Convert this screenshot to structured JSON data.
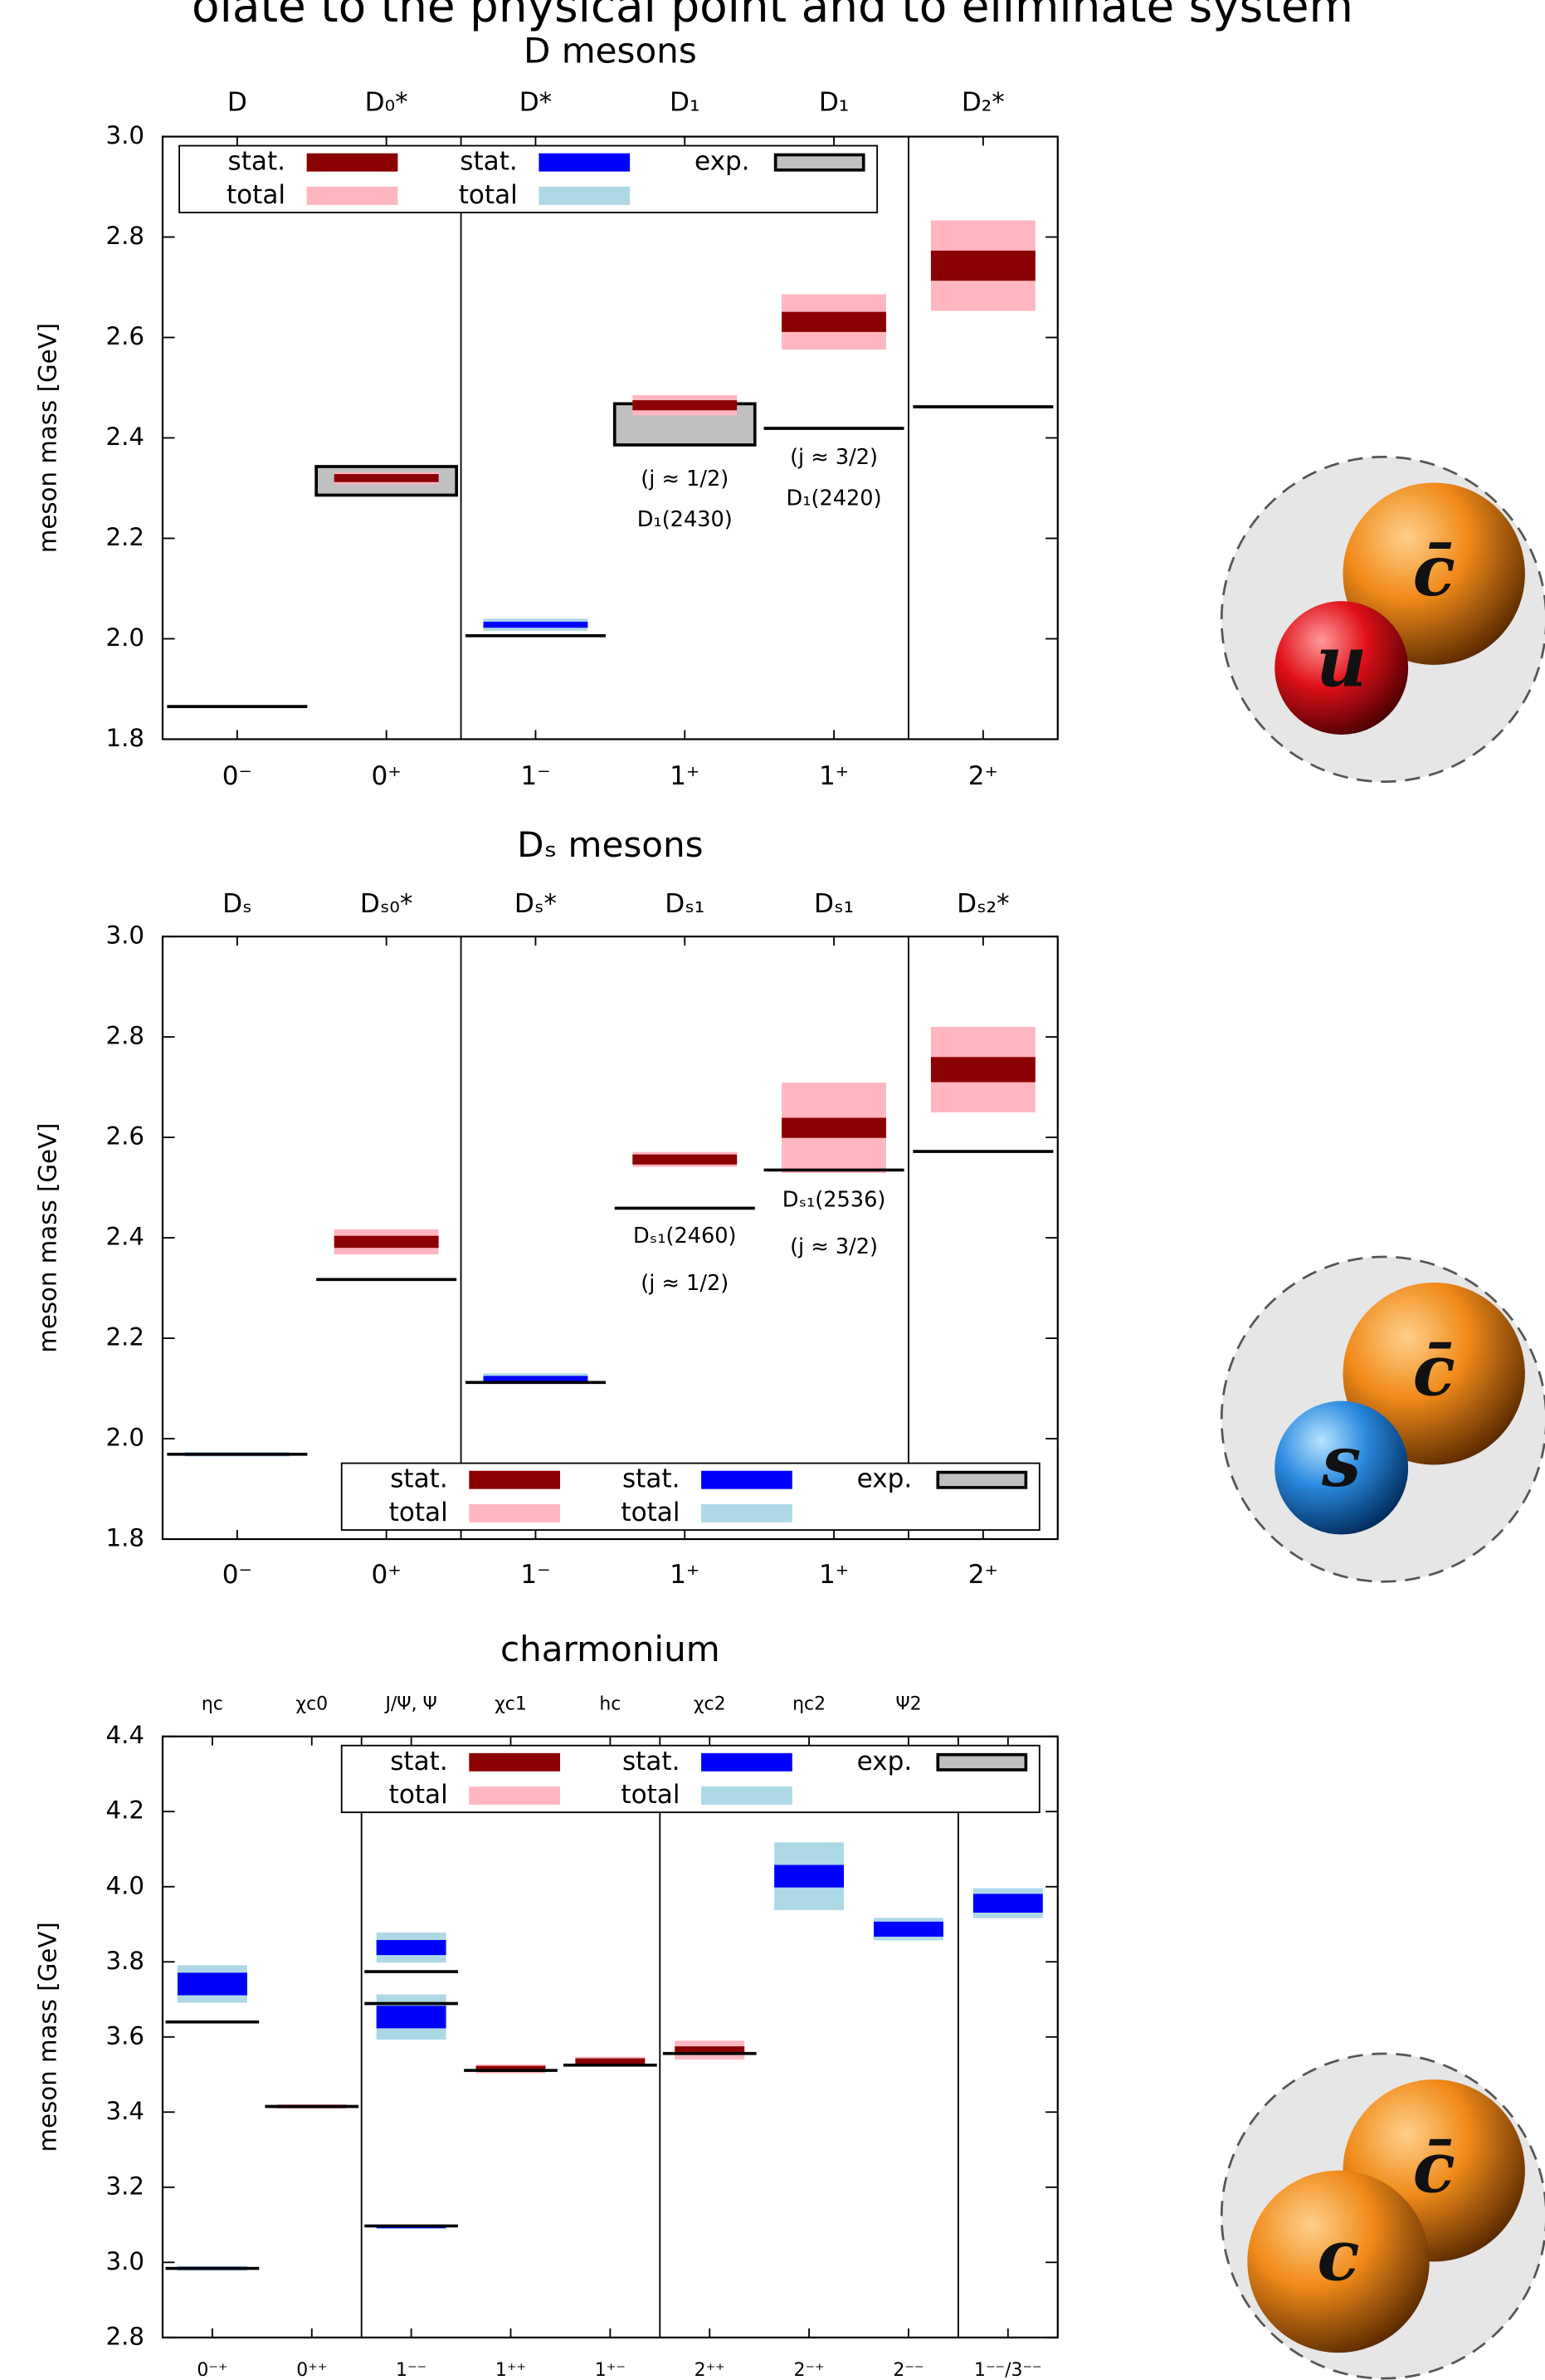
{
  "page_header": "olate to the physical point and to eliminate system",
  "chart_data": [
    {
      "type": "spectrum",
      "title": "D mesons",
      "ylabel": "meson mass [GeV]",
      "ylim": [
        1.8,
        3.0
      ],
      "yticks": [
        {
          "value": 1.8,
          "label": "1.8"
        },
        {
          "value": 2.0,
          "label": "2.0"
        },
        {
          "value": 2.2,
          "label": "2.2"
        },
        {
          "value": 2.4,
          "label": "2.4"
        },
        {
          "value": 2.6,
          "label": "2.6"
        },
        {
          "value": 2.8,
          "label": "2.8"
        },
        {
          "value": 3.0,
          "label": "3.0"
        }
      ],
      "categories": [
        "D",
        "D₀*",
        "D*",
        "D₁",
        "D₁",
        "D₂*"
      ],
      "x_labels": [
        "0⁻",
        "0⁺",
        "1⁻",
        "1⁺",
        "1⁺",
        "2⁺"
      ],
      "legend": "upper left",
      "series": [
        {
          "name": "stat.",
          "color": "#8b0000"
        },
        {
          "name": "total",
          "color": "#ffb6c1"
        },
        {
          "name": "stat.",
          "color": "#0000ff"
        },
        {
          "name": "total",
          "color": "#add8e6"
        },
        {
          "name": "exp.",
          "color": "#c0c0c0"
        }
      ],
      "levels": [
        {
          "x": 1,
          "series": 0,
          "value": 2.32,
          "stat": 0.008,
          "total": 0.012
        },
        {
          "x": 2,
          "series": 2,
          "value": 2.028,
          "stat": 0.006,
          "total": 0.012
        },
        {
          "x": 3,
          "series": 0,
          "value": 2.465,
          "stat": 0.01,
          "total": 0.02
        },
        {
          "x": 4,
          "series": 0,
          "value": 2.631,
          "stat": 0.02,
          "total": 0.055
        },
        {
          "x": 5,
          "series": 0,
          "value": 2.743,
          "stat": 0.03,
          "total": 0.09
        }
      ],
      "experiment": [
        {
          "x": 0,
          "value": 1.865
        },
        {
          "x": 2,
          "value": 2.006
        },
        {
          "x": 4,
          "value": 2.419
        },
        {
          "x": 5,
          "value": 2.462
        }
      ],
      "experiment_ranges": [
        {
          "x": 1,
          "low": 2.286,
          "high": 2.343
        },
        {
          "x": 3,
          "low": 2.386,
          "high": 2.468
        }
      ],
      "annotations": [
        {
          "x": 3,
          "lines": [
            "(j ≈ 1/2)",
            "D₁(2430)"
          ]
        },
        {
          "x": 4,
          "lines": [
            "(j ≈ 3/2)",
            "D₁(2420)"
          ]
        }
      ]
    },
    {
      "type": "spectrum",
      "title": "Dₛ mesons",
      "ylabel": "meson mass [GeV]",
      "ylim": [
        1.8,
        3.0
      ],
      "yticks": [
        {
          "value": 1.8,
          "label": "1.8"
        },
        {
          "value": 2.0,
          "label": "2.0"
        },
        {
          "value": 2.2,
          "label": "2.2"
        },
        {
          "value": 2.4,
          "label": "2.4"
        },
        {
          "value": 2.6,
          "label": "2.6"
        },
        {
          "value": 2.8,
          "label": "2.8"
        },
        {
          "value": 3.0,
          "label": "3.0"
        }
      ],
      "categories": [
        "Dₛ",
        "Dₛ₀*",
        "Dₛ*",
        "Dₛ₁",
        "Dₛ₁",
        "Dₛ₂*"
      ],
      "x_labels": [
        "0⁻",
        "0⁺",
        "1⁻",
        "1⁺",
        "1⁺",
        "2⁺"
      ],
      "legend": "lower right",
      "series": [
        {
          "name": "stat.",
          "color": "#8b0000"
        },
        {
          "name": "total",
          "color": "#ffb6c1"
        },
        {
          "name": "stat.",
          "color": "#0000ff"
        },
        {
          "name": "total",
          "color": "#add8e6"
        },
        {
          "name": "exp.",
          "color": "#c0c0c0"
        }
      ],
      "levels": [
        {
          "x": 0,
          "series": 2,
          "value": 1.969,
          "stat": 0.002,
          "total": 0.003
        },
        {
          "x": 1,
          "series": 0,
          "value": 2.392,
          "stat": 0.012,
          "total": 0.025
        },
        {
          "x": 2,
          "series": 2,
          "value": 2.12,
          "stat": 0.005,
          "total": 0.01
        },
        {
          "x": 3,
          "series": 0,
          "value": 2.556,
          "stat": 0.01,
          "total": 0.015
        },
        {
          "x": 4,
          "series": 0,
          "value": 2.619,
          "stat": 0.02,
          "total": 0.09
        },
        {
          "x": 5,
          "series": 0,
          "value": 2.735,
          "stat": 0.025,
          "total": 0.085
        }
      ],
      "experiment": [
        {
          "x": 0,
          "value": 1.969
        },
        {
          "x": 1,
          "value": 2.317
        },
        {
          "x": 2,
          "value": 2.112
        },
        {
          "x": 3,
          "value": 2.459
        },
        {
          "x": 4,
          "value": 2.535
        },
        {
          "x": 5,
          "value": 2.572
        }
      ],
      "experiment_ranges": [],
      "annotations": [
        {
          "x": 3,
          "lines": [
            "Dₛ₁(2460)",
            "(j ≈ 1/2)"
          ]
        },
        {
          "x": 4,
          "lines": [
            "Dₛ₁(2536)",
            "(j ≈ 3/2)"
          ]
        }
      ]
    },
    {
      "type": "spectrum",
      "title": "charmonium",
      "ylabel": "meson mass [GeV]",
      "ylim": [
        2.8,
        4.4
      ],
      "yticks": [
        {
          "value": 2.8,
          "label": "2.8"
        },
        {
          "value": 3.0,
          "label": "3.0"
        },
        {
          "value": 3.2,
          "label": "3.2"
        },
        {
          "value": 3.4,
          "label": "3.4"
        },
        {
          "value": 3.6,
          "label": "3.6"
        },
        {
          "value": 3.8,
          "label": "3.8"
        },
        {
          "value": 4.0,
          "label": "4.0"
        },
        {
          "value": 4.2,
          "label": "4.2"
        },
        {
          "value": 4.4,
          "label": "4.4"
        }
      ],
      "categories": [
        "ηc",
        "χc0",
        "J/Ψ, Ψ",
        "χc1",
        "hc",
        "χc2",
        "ηc2",
        "Ψ2",
        null
      ],
      "x_labels": [
        "0⁻⁺",
        "0⁺⁺",
        "1⁻⁻",
        "1⁺⁺",
        "1⁺⁻",
        "2⁺⁺",
        "2⁻⁺",
        "2⁻⁻",
        "1⁻⁻/3⁻⁻"
      ],
      "legend": "upper right",
      "series": [
        {
          "name": "stat.",
          "color": "#8b0000"
        },
        {
          "name": "total",
          "color": "#ffb6c1"
        },
        {
          "name": "stat.",
          "color": "#0000ff"
        },
        {
          "name": "total",
          "color": "#add8e6"
        },
        {
          "name": "exp.",
          "color": "#c0c0c0"
        }
      ],
      "levels": [
        {
          "x": 0,
          "series": 2,
          "value": 2.984,
          "stat": 0.003,
          "total": 0.004
        },
        {
          "x": 0,
          "series": 2,
          "value": 3.741,
          "stat": 0.03,
          "total": 0.05
        },
        {
          "x": 1,
          "series": 0,
          "value": 3.415,
          "stat": 0.003,
          "total": 0.004
        },
        {
          "x": 2,
          "series": 2,
          "value": 3.095,
          "stat": 0.003,
          "total": 0.004
        },
        {
          "x": 2,
          "series": 2,
          "value": 3.838,
          "stat": 0.02,
          "total": 0.04
        },
        {
          "x": 2,
          "series": 2,
          "value": 3.653,
          "stat": 0.03,
          "total": 0.06
        },
        {
          "x": 3,
          "series": 0,
          "value": 3.515,
          "stat": 0.008,
          "total": 0.012
        },
        {
          "x": 4,
          "series": 0,
          "value": 3.535,
          "stat": 0.008,
          "total": 0.012
        },
        {
          "x": 5,
          "series": 0,
          "value": 3.565,
          "stat": 0.01,
          "total": 0.025
        },
        {
          "x": 6,
          "series": 2,
          "value": 4.028,
          "stat": 0.03,
          "total": 0.09
        },
        {
          "x": 7,
          "series": 2,
          "value": 3.887,
          "stat": 0.02,
          "total": 0.03
        },
        {
          "x": 8,
          "series": 2,
          "value": 3.956,
          "stat": 0.025,
          "total": 0.04
        }
      ],
      "experiment": [
        {
          "x": 0,
          "value": 2.984
        },
        {
          "x": 0,
          "value": 3.64
        },
        {
          "x": 1,
          "value": 3.415
        },
        {
          "x": 2,
          "value": 3.097
        },
        {
          "x": 2,
          "value": 3.689
        },
        {
          "x": 2,
          "value": 3.774
        },
        {
          "x": 3,
          "value": 3.511
        },
        {
          "x": 4,
          "value": 3.525
        },
        {
          "x": 5,
          "value": 3.556
        }
      ],
      "experiment_ranges": [],
      "annotations": []
    }
  ],
  "illustrations": [
    {
      "quarks": [
        "c̄",
        "u"
      ]
    },
    {
      "quarks": [
        "c̄",
        "s"
      ]
    },
    {
      "quarks": [
        "c̄",
        "c"
      ]
    }
  ]
}
